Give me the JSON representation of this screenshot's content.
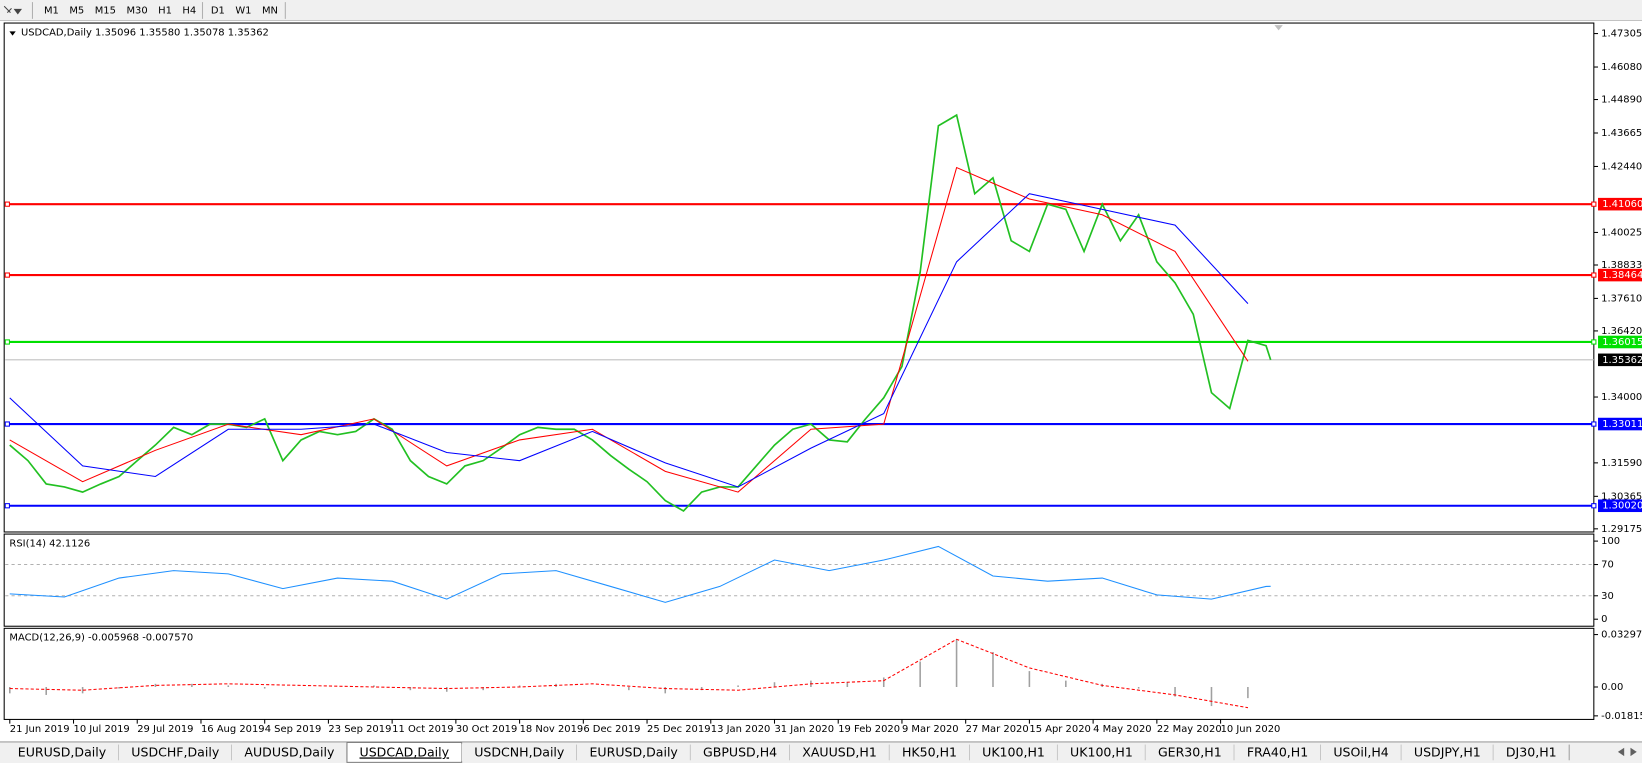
{
  "toolbar": {
    "timeframes": [
      "M1",
      "M5",
      "M15",
      "M30",
      "H1",
      "H4",
      "D1",
      "W1",
      "MN"
    ]
  },
  "chart_data": [
    {
      "type": "line",
      "title": "USDCAD,Daily 1.35096 1.35580 1.35078 1.35362",
      "xlim": [
        -1,
        348
      ],
      "ylim": [
        1.2906,
        1.4769
      ],
      "xticks": [
        {
          "value": 0,
          "label": "21 Jun 2019"
        },
        {
          "value": 14,
          "label": "10 Jul 2019"
        },
        {
          "value": 28,
          "label": "29 Jul 2019"
        },
        {
          "value": 42,
          "label": "16 Aug 2019"
        },
        {
          "value": 56,
          "label": "4 Sep 2019"
        },
        {
          "value": 70,
          "label": "23 Sep 2019"
        },
        {
          "value": 84,
          "label": "11 Oct 2019"
        },
        {
          "value": 98,
          "label": "30 Oct 2019"
        },
        {
          "value": 112,
          "label": "18 Nov 2019"
        },
        {
          "value": 126,
          "label": "6 Dec 2019"
        },
        {
          "value": 140,
          "label": "25 Dec 2019"
        },
        {
          "value": 154,
          "label": "13 Jan 2020"
        },
        {
          "value": 168,
          "label": "31 Jan 2020"
        },
        {
          "value": 182,
          "label": "19 Feb 2020"
        },
        {
          "value": 196,
          "label": "9 Mar 2020"
        },
        {
          "value": 210,
          "label": "27 Mar 2020"
        },
        {
          "value": 224,
          "label": "15 Apr 2020"
        },
        {
          "value": 238,
          "label": "4 May 2020"
        },
        {
          "value": 252,
          "label": "22 May 2020"
        },
        {
          "value": 266,
          "label": "10 Jun 2020"
        }
      ],
      "yticks": [
        1.47305,
        {
          "value": 1.4608,
          "label": "1.46080"
        },
        {
          "value": 1.4489,
          "label": "1.44890"
        },
        1.43665,
        {
          "value": 1.4244,
          "label": "1.42440"
        },
        1.40025,
        1.38833,
        {
          "value": 1.3761,
          "label": "1.37610"
        },
        {
          "value": 1.3642,
          "label": "1.36420"
        },
        {
          "value": 1.34,
          "label": "1.34000"
        },
        {
          "value": 1.3159,
          "label": "1.31590"
        },
        1.30365,
        1.29175
      ],
      "levels": [
        {
          "value": 1.4106,
          "label": "1.41060",
          "color": "#ff0000"
        },
        {
          "value": 1.38464,
          "label": "1.38464",
          "color": "#ff0000"
        },
        {
          "value": 1.36015,
          "label": "1.36015",
          "color": "#00e000"
        },
        {
          "value": 1.33011,
          "label": "1.33011",
          "color": "#0000ff"
        },
        {
          "value": 1.3002,
          "label": "1.30020",
          "color": "#0000ff"
        }
      ],
      "bid": 1.35362,
      "series": [
        {
          "color": "#22c022",
          "x": [
            0,
            4,
            8,
            12,
            16,
            20,
            24,
            28,
            32,
            36,
            40,
            44,
            48,
            52,
            56,
            60,
            64,
            68,
            72,
            76,
            80,
            84,
            88,
            92,
            96,
            100,
            104,
            108,
            112,
            116,
            120,
            124,
            128,
            132,
            136,
            140,
            144,
            148,
            152,
            156,
            160,
            164,
            168,
            172,
            176,
            180,
            184,
            188,
            192,
            196,
            200,
            204,
            208,
            212,
            216,
            220,
            224,
            228,
            232,
            236,
            240,
            244,
            248,
            252,
            256,
            260,
            264,
            268,
            272,
            276,
            277
          ],
          "values": [
            1.3224,
            1.3167,
            1.3082,
            1.3071,
            1.3052,
            1.3082,
            1.3109,
            1.3167,
            1.3224,
            1.3289,
            1.3262,
            1.3301,
            1.3301,
            1.3289,
            1.332,
            1.3167,
            1.3243,
            1.3274,
            1.3262,
            1.3274,
            1.332,
            1.3282,
            1.3167,
            1.3109,
            1.3082,
            1.3148,
            1.3167,
            1.3213,
            1.3262,
            1.3289,
            1.3282,
            1.3282,
            1.3243,
            1.3186,
            1.3136,
            1.309,
            1.3021,
            1.2983,
            1.3052,
            1.3071,
            1.3071,
            1.3148,
            1.3224,
            1.3282,
            1.3301,
            1.3243,
            1.3236,
            1.332,
            1.3397,
            1.3512,
            1.3857,
            1.4393,
            1.4432,
            1.4144,
            1.4202,
            1.3972,
            1.3933,
            1.4106,
            1.4087,
            1.3933,
            1.4106,
            1.3972,
            1.4067,
            1.3895,
            1.3818,
            1.3703,
            1.3416,
            1.3358,
            1.3607,
            1.3588,
            1.3536
          ]
        },
        {
          "color": "#ff0000",
          "x": [
            0,
            16,
            32,
            48,
            64,
            80,
            96,
            112,
            128,
            144,
            160,
            176,
            192,
            208,
            224,
            240,
            256,
            272
          ],
          "values": [
            1.3243,
            1.309,
            1.3205,
            1.3301,
            1.3262,
            1.332,
            1.3148,
            1.3243,
            1.3282,
            1.3128,
            1.3052,
            1.3282,
            1.3301,
            1.424,
            1.4125,
            1.4067,
            1.3933,
            1.3531
          ]
        },
        {
          "color": "#0000ff",
          "x": [
            0,
            16,
            32,
            48,
            64,
            80,
            96,
            112,
            128,
            144,
            160,
            176,
            192,
            208,
            224,
            240,
            256,
            272
          ],
          "values": [
            1.3397,
            1.3148,
            1.3109,
            1.3282,
            1.3282,
            1.3301,
            1.3197,
            1.3167,
            1.3274,
            1.3159,
            1.3071,
            1.3213,
            1.3339,
            1.3895,
            1.4144,
            1.4087,
            1.4029,
            1.3742
          ]
        }
      ]
    },
    {
      "type": "line",
      "title": "RSI(14) 42.1126",
      "xlim": [
        -1,
        348
      ],
      "ylim": [
        -9,
        109
      ],
      "yticks": [
        100,
        70,
        30,
        0
      ],
      "levels": [
        70,
        30
      ],
      "series": [
        {
          "color": "#1e90ff",
          "x": [
            0,
            12,
            24,
            36,
            48,
            60,
            72,
            84,
            96,
            108,
            120,
            132,
            144,
            156,
            168,
            180,
            192,
            204,
            216,
            228,
            240,
            252,
            264,
            276,
            277
          ],
          "values": [
            32.4,
            28.4,
            52.7,
            62.2,
            58.1,
            39.2,
            52.7,
            48.6,
            25.7,
            58.1,
            62.2,
            41.9,
            21.6,
            41.9,
            75.7,
            62.2,
            75.7,
            93.2,
            55.4,
            48.6,
            52.7,
            31.1,
            25.7,
            41.9,
            42.1
          ]
        }
      ]
    },
    {
      "type": "macd",
      "title": "MACD(12,26,9) -0.005968 -0.007570",
      "xlim": [
        -1,
        348
      ],
      "ylim": [
        -0.0204,
        0.0369
      ],
      "yticks": [
        0.032972,
        {
          "value": 0,
          "label": "0.00"
        },
        -0.018154
      ],
      "series": [
        {
          "style": "bar",
          "color": "#a0a0a0",
          "x": [
            0,
            8,
            16,
            24,
            32,
            40,
            48,
            56,
            64,
            72,
            80,
            88,
            96,
            104,
            112,
            120,
            128,
            136,
            144,
            152,
            160,
            168,
            176,
            184,
            192,
            200,
            208,
            216,
            224,
            232,
            240,
            248,
            256,
            264,
            272
          ],
          "values": [
            -0.004,
            -0.005,
            -0.004,
            -0.001,
            0.002,
            0.002,
            0.001,
            -0.001,
            0,
            0,
            0.001,
            -0.002,
            -0.003,
            -0.002,
            0.001,
            0.002,
            0,
            -0.002,
            -0.004,
            -0.002,
            0.001,
            0.003,
            0.004,
            0.003,
            0.006,
            0.016,
            0.03,
            0.022,
            0.01,
            0.004,
            0.002,
            -0.001,
            -0.006,
            -0.012,
            -0.007
          ]
        },
        {
          "style": "dashed",
          "color": "#ff0000",
          "x": [
            0,
            16,
            32,
            48,
            64,
            80,
            96,
            112,
            128,
            144,
            160,
            176,
            192,
            208,
            224,
            240,
            256,
            272
          ],
          "values": [
            -0.001,
            -0.002,
            0.001,
            0.002,
            0.001,
            0,
            -0.001,
            0,
            0.002,
            -0.001,
            -0.002,
            0.002,
            0.004,
            0.03,
            0.012,
            0.001,
            -0.005,
            -0.013
          ]
        }
      ]
    }
  ],
  "tabs": {
    "items": [
      "EURUSD,Daily",
      "USDCHF,Daily",
      "AUDUSD,Daily",
      "USDCAD,Daily",
      "USDCNH,Daily",
      "EURUSD,Daily",
      "GBPUSD,H4",
      "XAUUSD,H1",
      "HK50,H1",
      "UK100,H1",
      "UK100,H1",
      "GER30,H1",
      "FRA40,H1",
      "USOil,H4",
      "USDJPY,H1",
      "DJ30,H1"
    ],
    "active": 3
  }
}
